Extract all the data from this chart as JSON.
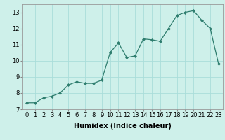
{
  "x": [
    0,
    1,
    2,
    3,
    4,
    5,
    6,
    7,
    8,
    9,
    10,
    11,
    12,
    13,
    14,
    15,
    16,
    17,
    18,
    19,
    20,
    21,
    22,
    23
  ],
  "y": [
    7.4,
    7.4,
    7.7,
    7.8,
    8.0,
    8.5,
    8.7,
    8.6,
    8.6,
    8.8,
    10.5,
    11.1,
    10.2,
    10.3,
    11.35,
    11.3,
    11.2,
    12.0,
    12.8,
    13.0,
    13.1,
    12.5,
    12.0,
    9.8
  ],
  "line_color": "#2e7d6e",
  "marker": "D",
  "marker_size": 2,
  "bg_color": "#cef0ea",
  "grid_color": "#aaddda",
  "xlabel": "Humidex (Indice chaleur)",
  "xlim": [
    -0.5,
    23.5
  ],
  "ylim": [
    7,
    13.5
  ],
  "yticks": [
    7,
    8,
    9,
    10,
    11,
    12,
    13
  ],
  "xticks": [
    0,
    1,
    2,
    3,
    4,
    5,
    6,
    7,
    8,
    9,
    10,
    11,
    12,
    13,
    14,
    15,
    16,
    17,
    18,
    19,
    20,
    21,
    22,
    23
  ],
  "xlabel_fontsize": 7,
  "tick_fontsize": 6
}
